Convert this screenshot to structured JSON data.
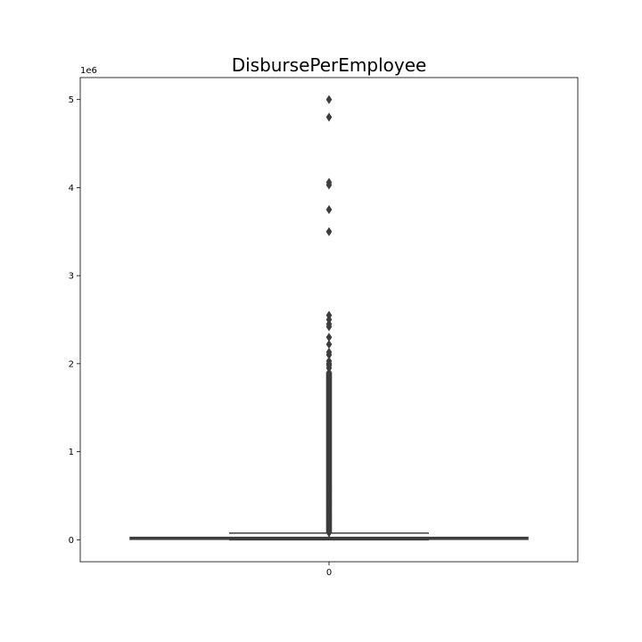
{
  "chart_data": {
    "type": "box",
    "title": "DisbursePerEmployee",
    "xlabel": "",
    "ylabel": "",
    "y_exponent_label": "1e6",
    "x_tick_labels": [
      "0"
    ],
    "y_ticks": [
      0,
      1,
      2,
      3,
      4,
      5
    ],
    "y_tick_labels": [
      "0",
      "1",
      "2",
      "3",
      "4",
      "5"
    ],
    "ylim": [
      -0.25,
      5.25
    ],
    "grid": false,
    "colors": {
      "box": "#3d3d3d",
      "median": "#3d3d3d",
      "outlier": "#3d3d3d"
    },
    "series": [
      {
        "category": "0",
        "q1": 0.005,
        "median": 0.012,
        "q3": 0.027,
        "whisker_low": 0.0,
        "whisker_high": 0.075,
        "outliers_dense_range": [
          0.08,
          1.9
        ],
        "outliers": [
          1.95,
          1.98,
          2.0,
          2.03,
          2.1,
          2.13,
          2.22,
          2.3,
          2.42,
          2.45,
          2.5,
          2.55,
          3.5,
          3.75,
          4.03,
          4.06,
          4.8,
          5.0
        ]
      }
    ]
  }
}
